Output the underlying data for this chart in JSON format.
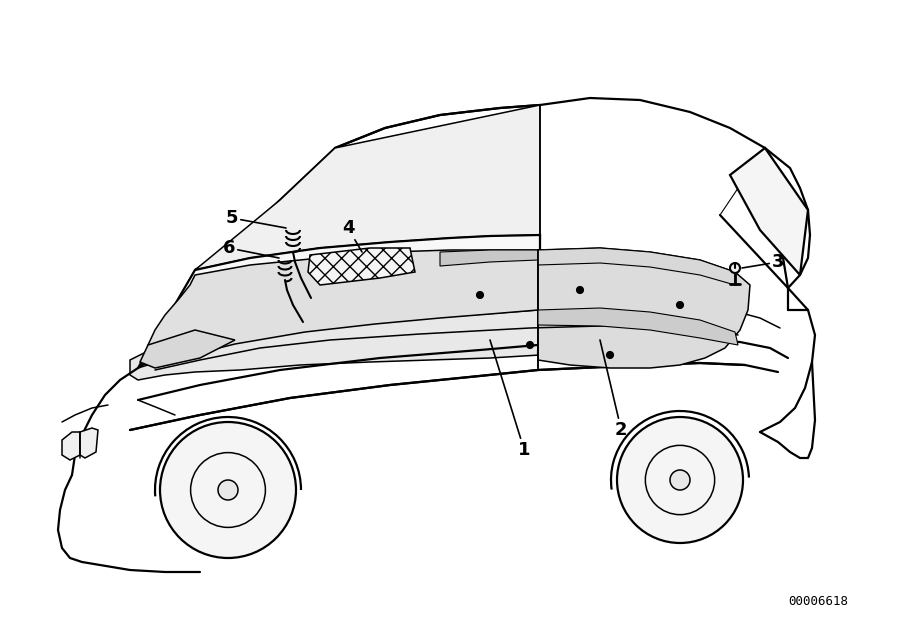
{
  "part_number": "00006618",
  "background_color": "#ffffff",
  "line_color": "#000000",
  "label_color": "#000000",
  "label_fontsize": 13,
  "label_fontweight": "bold",
  "part_number_fontsize": 9,
  "lw_body": 1.6,
  "lw_detail": 1.1,
  "lw_thin": 0.8
}
